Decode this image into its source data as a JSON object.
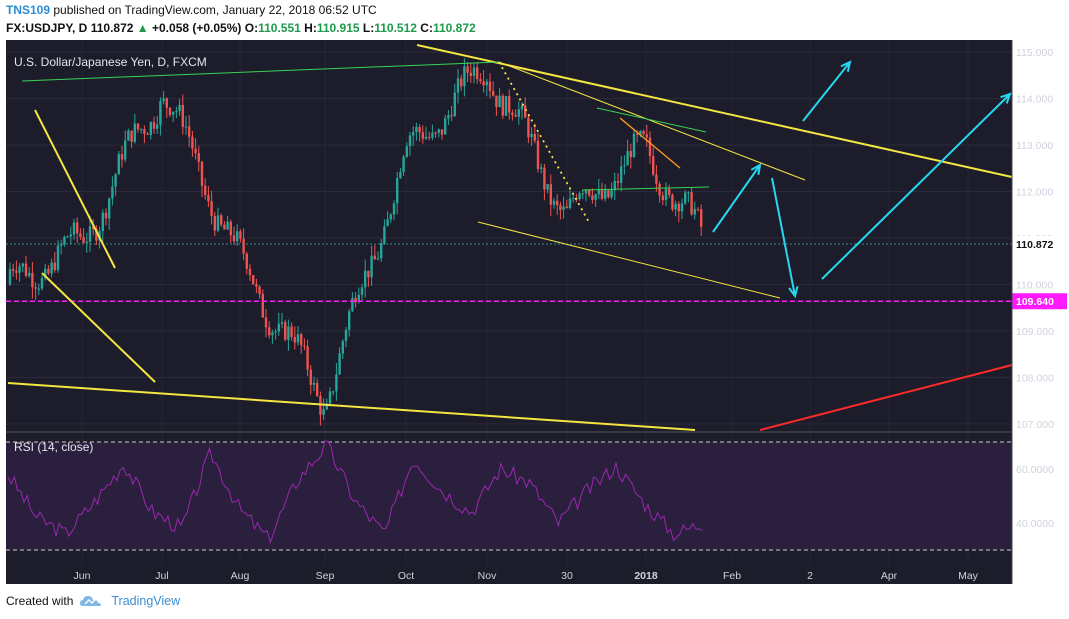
{
  "header": {
    "author": "TNS109",
    "published_text": "published on TradingView.com, January 22, 2018 06:52 UTC",
    "symbol": "FX:USDJPY, D",
    "last": "110.872",
    "change": "+0.058 (+0.05%)",
    "o_label": "O:",
    "o_value": "110.551",
    "h_label": "H:",
    "h_value": "110.915",
    "l_label": "L:",
    "l_value": "110.512",
    "c_label": "C:",
    "c_value": "110.872"
  },
  "footer": {
    "created_with": "Created with",
    "brand": "TradingView"
  },
  "colors": {
    "background": "#1c1c2a",
    "up": "#26a69a",
    "down": "#ef5350",
    "trend": "#f5e642",
    "arrow": "#27d7f0",
    "support": "#ff19ff",
    "rsi": "#9c27b0",
    "rsi_bg": "#2a1f3d"
  },
  "chart_data": [
    {
      "type": "candlestick",
      "title": "U.S. Dollar/Japanese Yen, D, FXCM",
      "ylim": [
        107.0,
        115.0
      ],
      "y_ticks": [
        "115.000",
        "114.000",
        "113.000",
        "112.000",
        "111.000",
        "110.000",
        "109.000",
        "108.000",
        "107.000"
      ],
      "x_ticks": [
        "Jun",
        "Jul",
        "Aug",
        "Sep",
        "Oct",
        "Nov",
        "30",
        "2018",
        "Feb",
        "2",
        "Apr",
        "May"
      ],
      "last_price_label": "110.872",
      "support_level_label": "109.640",
      "support_level": 109.64,
      "monthly_path": [
        {
          "x": "May",
          "close": 110.0
        },
        {
          "x": "Jun",
          "close": 110.9
        },
        {
          "x": "Jul",
          "close": 114.2
        },
        {
          "x": "Aug",
          "close": 110.5
        },
        {
          "x": "Sep",
          "close": 107.5
        },
        {
          "x": "Oct",
          "close": 112.8
        },
        {
          "x": "Nov",
          "close": 114.7
        },
        {
          "x": "30",
          "close": 111.5
        },
        {
          "x": "2018",
          "close": 112.9
        },
        {
          "x": "Jan",
          "close": 110.9
        }
      ]
    },
    {
      "type": "line",
      "title": "RSI (14, close)",
      "y_ticks": [
        "60.0000",
        "40.0000"
      ],
      "levels": [
        70,
        30
      ],
      "series": [
        {
          "values": [
            58,
            42,
            36,
            48,
            62,
            44,
            38,
            66,
            45,
            34,
            56,
            69,
            48,
            36,
            64,
            52,
            44,
            60,
            55,
            40,
            52,
            61,
            47,
            36,
            40
          ]
        }
      ]
    }
  ]
}
